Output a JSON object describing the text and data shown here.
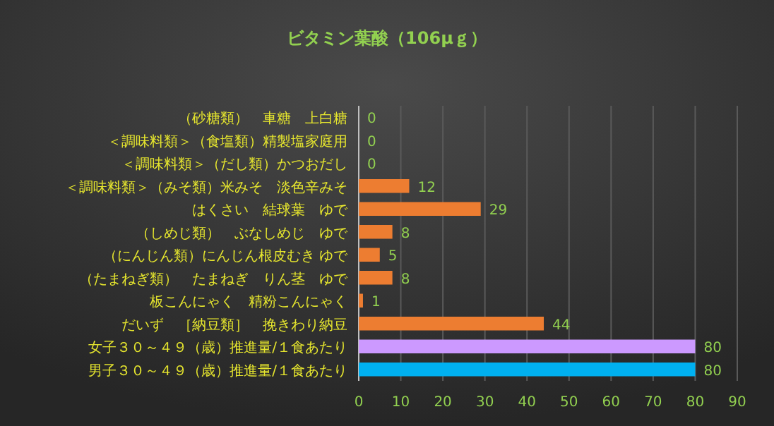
{
  "chart_data": {
    "type": "bar",
    "orientation": "horizontal",
    "title": "ビタミン葉酸（106μｇ）",
    "categories": [
      "（砂糖類）　車糖　上白糖",
      "＜調味料類＞（食塩類）精製塩家庭用",
      "＜調味料類＞（だし類）かつおだし",
      "＜調味料類＞（みそ類）米みそ　淡色辛みそ",
      "はくさい　結球葉　ゆで",
      "（しめじ類）　ぶなしめじ　ゆで",
      "（にんじん類）にんじん根皮むき ゆで",
      "（たまねぎ類）　たまねぎ　りん茎　ゆで",
      "板こんにゃく　精粉こんにゃく",
      "だいず　［納豆類］　挽きわり納豆",
      "女子３０～４９（歳）推進量/１食あたり",
      "男子３０～４９（歳）推進量/１食あたり"
    ],
    "values": [
      0,
      0,
      0,
      12,
      29,
      8,
      5,
      8,
      1,
      44,
      80,
      80
    ],
    "colors": [
      "#ed7d31",
      "#ed7d31",
      "#ed7d31",
      "#ed7d31",
      "#ed7d31",
      "#ed7d31",
      "#ed7d31",
      "#ed7d31",
      "#ed7d31",
      "#ed7d31",
      "#cc99ff",
      "#00b0f0"
    ],
    "xlim": [
      0,
      90
    ],
    "xticks": [
      0,
      10,
      20,
      30,
      40,
      50,
      60,
      70,
      80,
      90
    ],
    "grid": "x",
    "data_labels": true
  }
}
